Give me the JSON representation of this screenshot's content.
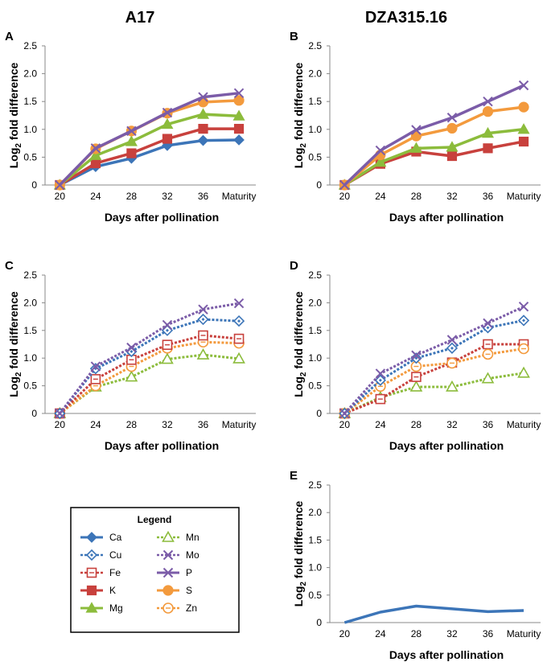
{
  "figure": {
    "col_titles": [
      "A17",
      "DZA315.16"
    ],
    "x_label": "Days after pollination",
    "y_label_prefix": "Log",
    "y_label_sub": "2",
    "y_label_suffix": " fold difference",
    "categories": [
      "20",
      "24",
      "28",
      "32",
      "36",
      "Maturity"
    ],
    "y_ticks": [
      "0",
      "0.5",
      "1.0",
      "1.5",
      "2.0",
      "2.5"
    ]
  },
  "legend": {
    "title": "Legend",
    "items": [
      {
        "name": "Ca",
        "color": "#3c75b8",
        "marker": "diamond",
        "style": "solid"
      },
      {
        "name": "Mn",
        "color": "#8cbc3c",
        "marker": "triangle",
        "style": "dashed"
      },
      {
        "name": "Cu",
        "color": "#3c75b8",
        "marker": "diamond",
        "style": "dashed"
      },
      {
        "name": "Mo",
        "color": "#7b5ca8",
        "marker": "x",
        "style": "dashed"
      },
      {
        "name": "Fe",
        "color": "#c8413d",
        "marker": "square",
        "style": "dashed"
      },
      {
        "name": "P",
        "color": "#7b5ca8",
        "marker": "x",
        "style": "solid"
      },
      {
        "name": "K",
        "color": "#c8413d",
        "marker": "square",
        "style": "solid"
      },
      {
        "name": "S",
        "color": "#f39a3d",
        "marker": "circle",
        "style": "solid"
      },
      {
        "name": "Mg",
        "color": "#8cbc3c",
        "marker": "triangle",
        "style": "solid"
      },
      {
        "name": "Zn",
        "color": "#f39a3d",
        "marker": "circle",
        "style": "dashed"
      }
    ]
  },
  "chart_data": [
    {
      "panel": "A",
      "type": "line",
      "title": "A17",
      "xlabel": "Days after pollination",
      "ylabel": "Log2 fold difference",
      "categories": [
        "20",
        "24",
        "28",
        "32",
        "36",
        "Maturity"
      ],
      "ylim": [
        0,
        2.5
      ],
      "series": [
        {
          "name": "Ca",
          "color": "#3c75b8",
          "marker": "diamond",
          "style": "solid",
          "values": [
            0,
            0.33,
            0.48,
            0.71,
            0.8,
            0.81
          ]
        },
        {
          "name": "K",
          "color": "#c8413d",
          "marker": "square",
          "style": "solid",
          "values": [
            0,
            0.39,
            0.57,
            0.83,
            1.01,
            1.01
          ]
        },
        {
          "name": "Mg",
          "color": "#8cbc3c",
          "marker": "triangle",
          "style": "solid",
          "values": [
            0,
            0.53,
            0.78,
            1.09,
            1.27,
            1.24
          ]
        },
        {
          "name": "S",
          "color": "#f39a3d",
          "marker": "circle",
          "style": "solid",
          "values": [
            0,
            0.65,
            0.97,
            1.29,
            1.49,
            1.52
          ]
        },
        {
          "name": "P",
          "color": "#7b5ca8",
          "marker": "x",
          "style": "solid",
          "values": [
            0,
            0.66,
            0.97,
            1.3,
            1.58,
            1.65
          ]
        }
      ]
    },
    {
      "panel": "B",
      "type": "line",
      "title": "DZA315.16",
      "xlabel": "Days after pollination",
      "ylabel": "Log2 fold difference",
      "categories": [
        "20",
        "24",
        "28",
        "32",
        "36",
        "Maturity"
      ],
      "ylim": [
        0,
        2.5
      ],
      "series": [
        {
          "name": "K",
          "color": "#c8413d",
          "marker": "square",
          "style": "solid",
          "values": [
            0,
            0.38,
            0.6,
            0.52,
            0.66,
            0.78
          ]
        },
        {
          "name": "Mg",
          "color": "#8cbc3c",
          "marker": "triangle",
          "style": "solid",
          "values": [
            0,
            0.41,
            0.66,
            0.68,
            0.93,
            1.0
          ]
        },
        {
          "name": "S",
          "color": "#f39a3d",
          "marker": "circle",
          "style": "solid",
          "values": [
            0,
            0.54,
            0.88,
            1.02,
            1.32,
            1.4
          ]
        },
        {
          "name": "P",
          "color": "#7b5ca8",
          "marker": "x",
          "style": "solid",
          "values": [
            0,
            0.62,
            0.99,
            1.21,
            1.5,
            1.79
          ]
        }
      ]
    },
    {
      "panel": "C",
      "type": "line",
      "xlabel": "Days after pollination",
      "ylabel": "Log2 fold difference",
      "categories": [
        "20",
        "24",
        "28",
        "32",
        "36",
        "Maturity"
      ],
      "ylim": [
        0,
        2.5
      ],
      "series": [
        {
          "name": "Mn",
          "color": "#8cbc3c",
          "marker": "triangle",
          "style": "dashed",
          "values": [
            0,
            0.48,
            0.66,
            0.98,
            1.06,
            0.99
          ]
        },
        {
          "name": "Zn",
          "color": "#f39a3d",
          "marker": "circle",
          "style": "dashed",
          "values": [
            0,
            0.5,
            0.85,
            1.18,
            1.29,
            1.27
          ]
        },
        {
          "name": "Fe",
          "color": "#c8413d",
          "marker": "square",
          "style": "dashed",
          "values": [
            0,
            0.62,
            0.97,
            1.24,
            1.41,
            1.35
          ]
        },
        {
          "name": "Cu",
          "color": "#3c75b8",
          "marker": "diamond",
          "style": "dashed",
          "values": [
            0,
            0.81,
            1.12,
            1.5,
            1.7,
            1.67
          ]
        },
        {
          "name": "Mo",
          "color": "#7b5ca8",
          "marker": "x",
          "style": "dashed",
          "values": [
            0,
            0.85,
            1.19,
            1.6,
            1.88,
            1.99
          ]
        }
      ]
    },
    {
      "panel": "D",
      "type": "line",
      "xlabel": "Days after pollination",
      "ylabel": "Log2 fold difference",
      "categories": [
        "20",
        "24",
        "28",
        "32",
        "36",
        "Maturity"
      ],
      "ylim": [
        0,
        2.5
      ],
      "series": [
        {
          "name": "Mn",
          "color": "#8cbc3c",
          "marker": "triangle",
          "style": "dashed",
          "values": [
            0,
            0.29,
            0.48,
            0.48,
            0.63,
            0.73
          ]
        },
        {
          "name": "Fe",
          "color": "#c8413d",
          "marker": "square",
          "style": "dashed",
          "values": [
            0,
            0.26,
            0.66,
            0.92,
            1.25,
            1.25
          ]
        },
        {
          "name": "Zn",
          "color": "#f39a3d",
          "marker": "circle",
          "style": "dashed",
          "values": [
            0,
            0.49,
            0.85,
            0.91,
            1.07,
            1.17
          ]
        },
        {
          "name": "Cu",
          "color": "#3c75b8",
          "marker": "diamond",
          "style": "dashed",
          "values": [
            0,
            0.6,
            1.0,
            1.18,
            1.55,
            1.68
          ]
        },
        {
          "name": "Mo",
          "color": "#7b5ca8",
          "marker": "x",
          "style": "dashed",
          "values": [
            0,
            0.72,
            1.05,
            1.33,
            1.63,
            1.93
          ]
        }
      ]
    },
    {
      "panel": "E",
      "type": "line",
      "xlabel": "Days after pollination",
      "ylabel": "Log2 fold difference",
      "categories": [
        "20",
        "24",
        "28",
        "32",
        "36",
        "Maturity"
      ],
      "ylim": [
        0,
        2.5
      ],
      "series": [
        {
          "name": "Ca",
          "color": "#3c75b8",
          "marker": "none",
          "style": "solid",
          "values": [
            0,
            0.19,
            0.3,
            0.25,
            0.2,
            0.22
          ]
        }
      ]
    }
  ]
}
